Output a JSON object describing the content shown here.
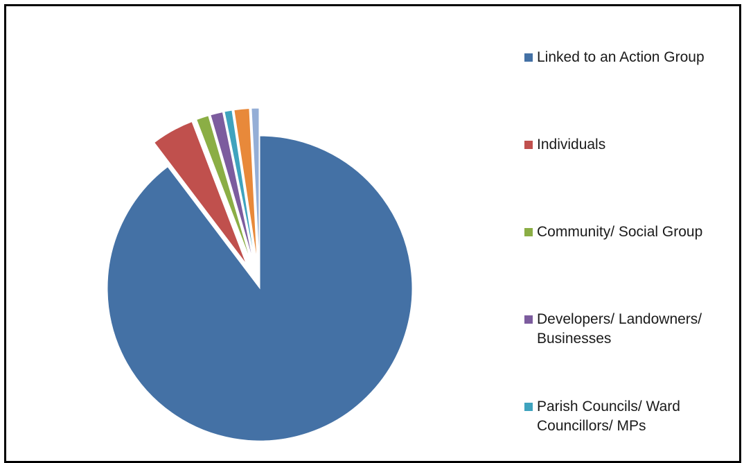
{
  "chart_data": {
    "type": "pie",
    "exploded": true,
    "grid": false,
    "legend_position": "right",
    "slices": [
      {
        "label": "Linked to an Action Group",
        "value": 89.5,
        "color": "#4471A5"
      },
      {
        "label": "Individuals",
        "value": 4.5,
        "color": "#C0504D"
      },
      {
        "label": "Community/ Social Group",
        "value": 1.3,
        "color": "#8BAE45"
      },
      {
        "label": "Developers/ Landowners/ Businesses",
        "value": 1.3,
        "color": "#7C5C9E"
      },
      {
        "label": "Parish Councils/ Ward Councillors/ MPs",
        "value": 0.8,
        "color": "#3FA3BE"
      },
      {
        "label": "",
        "value": 1.6,
        "color": "#E8893A"
      },
      {
        "label": "",
        "value": 0.8,
        "color": "#94AED6"
      }
    ]
  },
  "legend": {
    "items": [
      {
        "label": "Linked to an Action Group",
        "color": "#4471A5"
      },
      {
        "label": "Individuals",
        "color": "#C0504D"
      },
      {
        "label": "Community/ Social Group",
        "color": "#8BAE45"
      },
      {
        "label": "Developers/ Landowners/ Businesses",
        "color": "#7C5C9E"
      },
      {
        "label": "Parish Councils/ Ward Councillors/ MPs",
        "color": "#3FA3BE"
      }
    ]
  }
}
